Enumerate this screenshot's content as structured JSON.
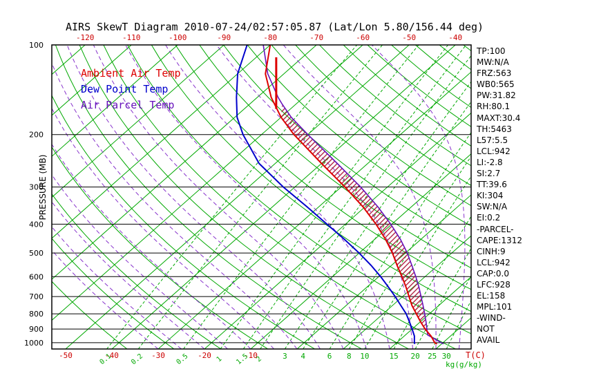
{
  "chart_data": {
    "type": "line",
    "title": "AIRS SkewT Diagram 2010-07-24/02:57:05.87 (Lat/Lon 5.80/156.44 deg)",
    "x_axis": {
      "label": "T(C)",
      "top_ticks": [
        -120,
        -110,
        -100,
        -90,
        -80,
        -70,
        -60,
        -50,
        -40
      ],
      "bottom_ticks": [
        -50,
        -40,
        -30,
        -20,
        -10
      ]
    },
    "y_axis": {
      "label": "PRESSURE (MB)",
      "scale": "log",
      "ticks": [
        100,
        200,
        300,
        400,
        500,
        600,
        700,
        800,
        900,
        1000
      ],
      "range": [
        100,
        1050
      ]
    },
    "isotherms": {
      "min": -130,
      "max": 40,
      "step": 10
    },
    "dry_adiabats_theta_c": [
      -40,
      -30,
      -20,
      -10,
      0,
      10,
      20,
      30,
      40,
      50,
      60,
      70,
      80,
      90,
      100,
      110,
      120,
      130,
      140,
      150,
      160,
      170,
      180,
      190,
      200
    ],
    "moist_adiabats_start_temp_c": [
      -30,
      -25,
      -20,
      -15,
      -10,
      -5,
      0,
      5,
      10,
      15,
      20,
      25,
      30,
      35
    ],
    "mixing_ratio_lines": {
      "label": "kg(g/kg)",
      "values": [
        0.1,
        0.2,
        0.5,
        1,
        1.5,
        2,
        3,
        4,
        6,
        8,
        10,
        15,
        20,
        25,
        30
      ]
    },
    "marker_line": {
      "points": [
        [
          110,
          -75.7
        ],
        [
          164,
          -63.1
        ]
      ]
    },
    "colors": {
      "grid_green": "#00a800",
      "moist_adiabat": "#8833cc",
      "temp_ticks": "#cc0000",
      "hatch": "#aa1133",
      "pressure_lines": "#000000",
      "marker": "#dd0000"
    },
    "series": [
      {
        "name": "Ambient Air Temp",
        "color": "#dd0000",
        "data_name": "ambient-temp-line",
        "points": [
          [
            1010,
            29
          ],
          [
            1000,
            28.2
          ],
          [
            950,
            25.8
          ],
          [
            900,
            22.8
          ],
          [
            850,
            20.0
          ],
          [
            800,
            17.2
          ],
          [
            750,
            14.2
          ],
          [
            700,
            11.4
          ],
          [
            650,
            8.4
          ],
          [
            600,
            5.0
          ],
          [
            550,
            1.2
          ],
          [
            500,
            -2.8
          ],
          [
            450,
            -7.6
          ],
          [
            400,
            -13.4
          ],
          [
            350,
            -20.4
          ],
          [
            300,
            -29.2
          ],
          [
            250,
            -40.0
          ],
          [
            200,
            -53.0
          ],
          [
            175,
            -60.0
          ],
          [
            150,
            -67.0
          ],
          [
            125,
            -74.0
          ],
          [
            100,
            -80.0
          ]
        ]
      },
      {
        "name": "Dew Point Temp",
        "color": "#0000cc",
        "data_name": "dew-point-line",
        "points": [
          [
            1010,
            24.2
          ],
          [
            1000,
            23.8
          ],
          [
            950,
            22.2
          ],
          [
            900,
            20.0
          ],
          [
            850,
            17.6
          ],
          [
            800,
            15.0
          ],
          [
            750,
            11.8
          ],
          [
            700,
            8.4
          ],
          [
            650,
            4.6
          ],
          [
            600,
            0.4
          ],
          [
            550,
            -4.4
          ],
          [
            500,
            -10.0
          ],
          [
            450,
            -16.5
          ],
          [
            400,
            -24.0
          ],
          [
            350,
            -32.5
          ],
          [
            300,
            -42.5
          ],
          [
            250,
            -53.5
          ],
          [
            200,
            -64.0
          ],
          [
            175,
            -69.5
          ],
          [
            150,
            -74.5
          ],
          [
            125,
            -80.0
          ],
          [
            100,
            -85.0
          ]
        ]
      },
      {
        "name": "Air Parcel Temp",
        "color": "#6611bb",
        "data_name": "parcel-temp-line",
        "points": [
          [
            1010,
            30.4
          ],
          [
            942,
            24.8
          ],
          [
            900,
            23.2
          ],
          [
            850,
            21.2
          ],
          [
            800,
            19.0
          ],
          [
            750,
            16.6
          ],
          [
            700,
            14.0
          ],
          [
            650,
            11.2
          ],
          [
            600,
            8.0
          ],
          [
            550,
            4.4
          ],
          [
            500,
            0.4
          ],
          [
            450,
            -4.4
          ],
          [
            400,
            -10.2
          ],
          [
            350,
            -17.2
          ],
          [
            300,
            -25.8
          ],
          [
            250,
            -36.6
          ],
          [
            200,
            -50.0
          ],
          [
            175,
            -57.8
          ],
          [
            158,
            -63.0
          ],
          [
            150,
            -65.5
          ],
          [
            125,
            -73.5
          ],
          [
            100,
            -81.5
          ]
        ]
      }
    ]
  },
  "stats_panel": {
    "lines": [
      "TP:100",
      "MW:N/A",
      "FRZ:563",
      "WB0:565",
      "PW:31.82",
      "RH:80.1",
      "MAXT:30.4",
      "TH:5463",
      "L57:5.5",
      "LCL:942",
      "LI:-2.8",
      "SI:2.7",
      "TT:39.6",
      "KI:304",
      "SW:N/A",
      "EI:0.2",
      "-PARCEL-",
      "CAPE:1312",
      "CINH:9",
      "LCL:942",
      "CAP:0.0",
      "LFC:928",
      "EL:158",
      "MPL:101",
      "-WIND-",
      "NOT",
      "AVAIL"
    ]
  }
}
